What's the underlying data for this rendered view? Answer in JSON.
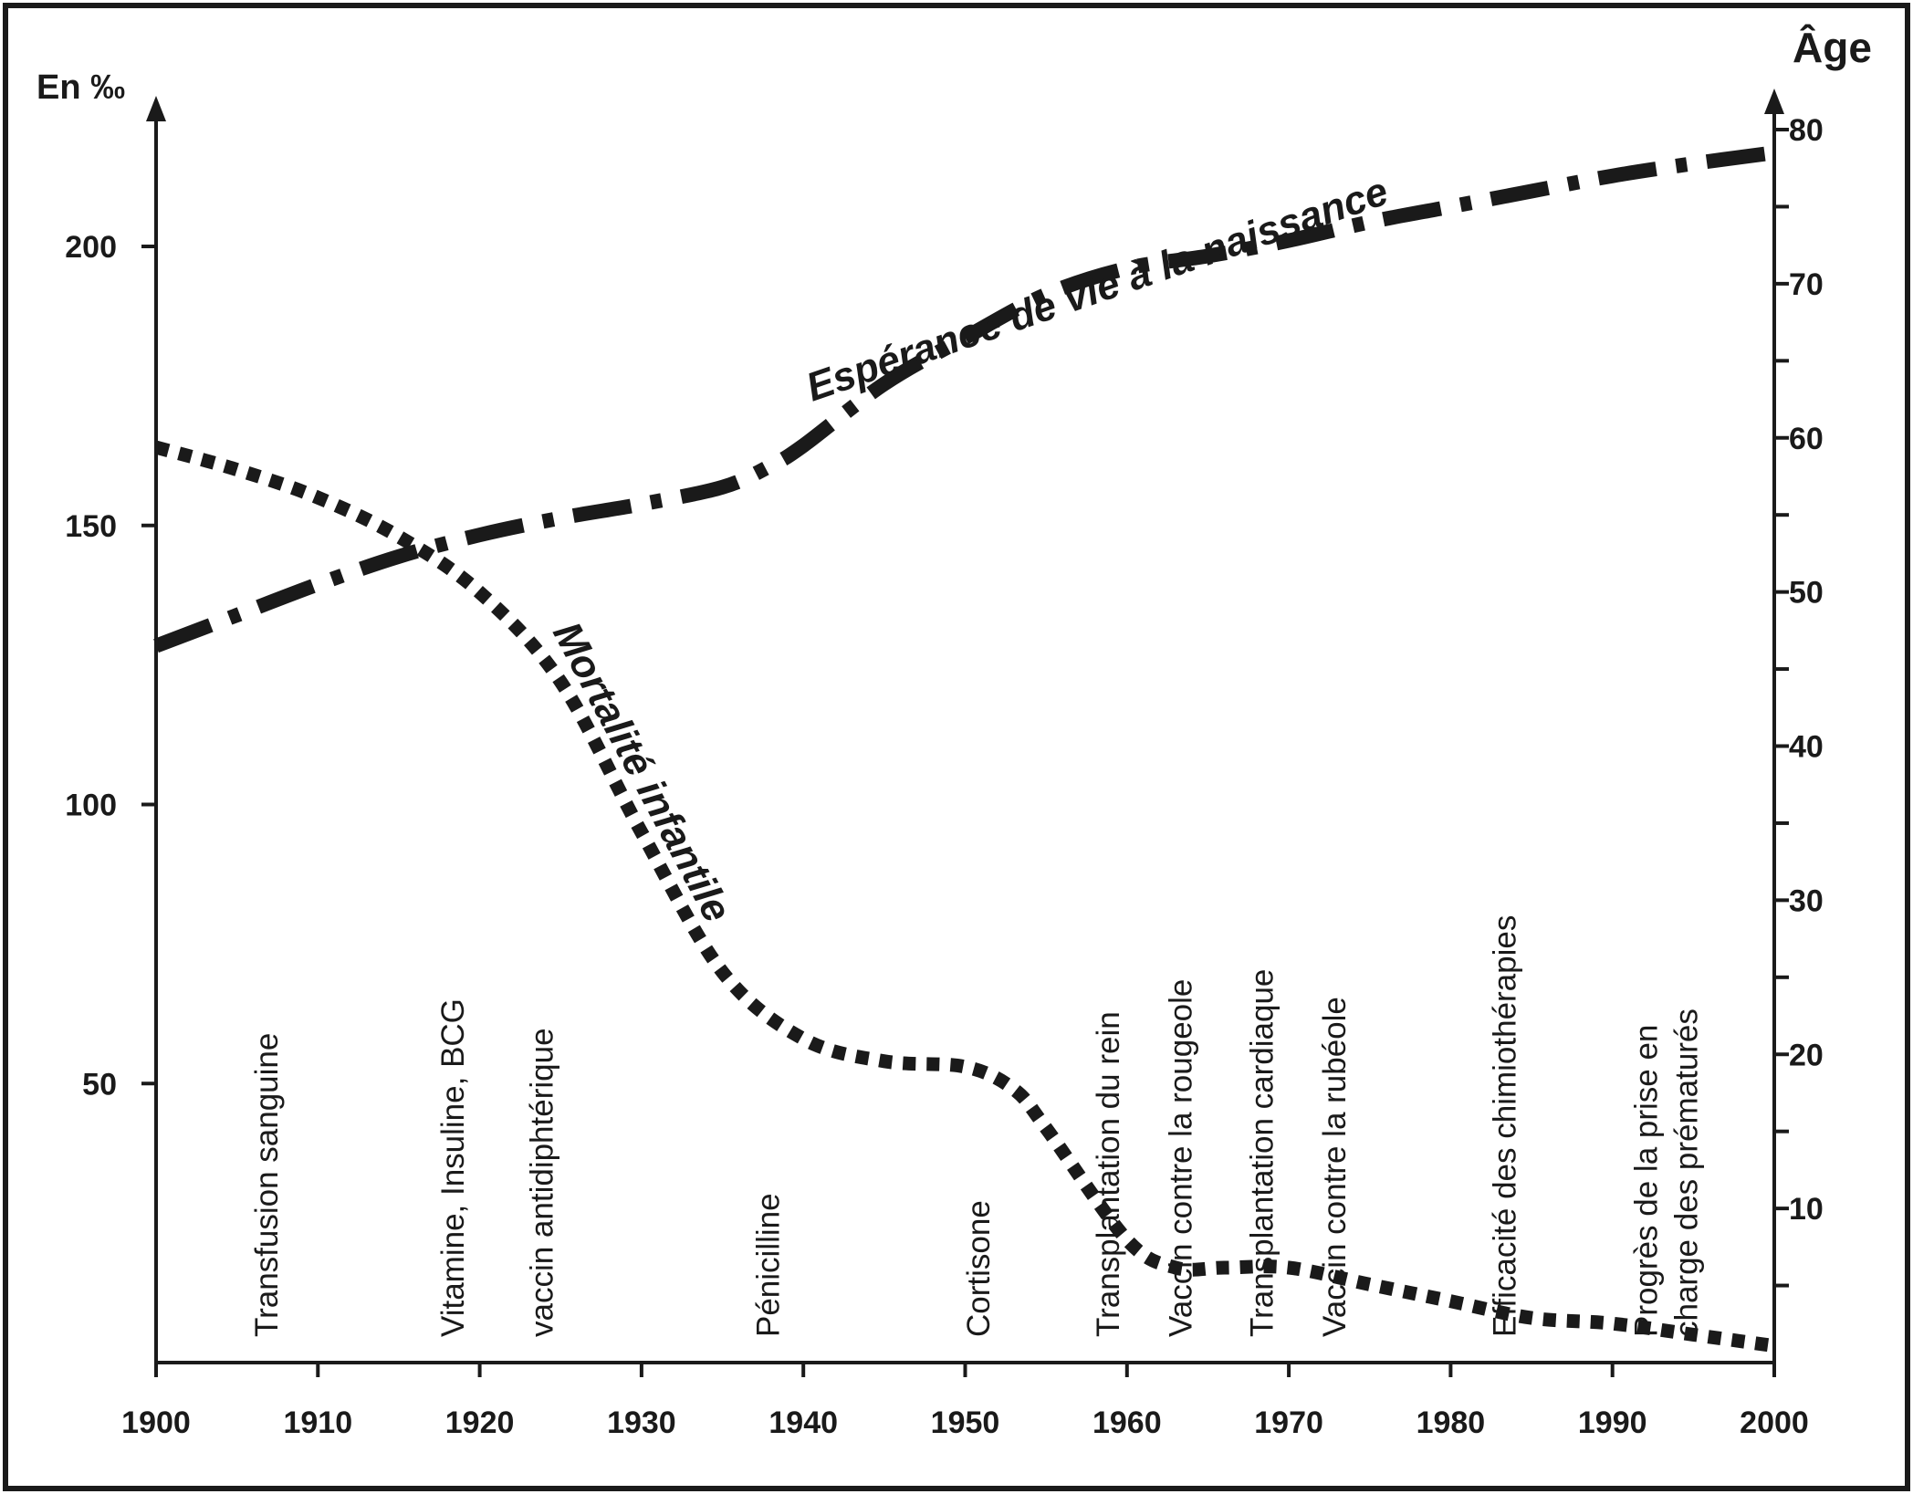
{
  "chart_data": {
    "type": "line",
    "title": "",
    "xlabel": "",
    "y_left_label": "En ‰",
    "y_right_label": "Âge",
    "x_range": [
      1900,
      2000
    ],
    "y_left_range": [
      0,
      220
    ],
    "y_right_range": [
      0,
      80
    ],
    "x_ticks": [
      1900,
      1910,
      1920,
      1930,
      1940,
      1950,
      1960,
      1970,
      1980,
      1990,
      2000
    ],
    "x_tick_labels": [
      "1900",
      "1910",
      "1920",
      "1930",
      "1940",
      "1950",
      "1960",
      "1970",
      "1980",
      "1990",
      "2000"
    ],
    "y_left_ticks": [
      50,
      100,
      150,
      200
    ],
    "y_left_tick_labels": [
      "50",
      "100",
      "150",
      "200"
    ],
    "y_right_ticks": [
      10,
      20,
      30,
      40,
      50,
      60,
      70,
      80
    ],
    "y_right_tick_labels": [
      "10",
      "20",
      "30",
      "40",
      "50",
      "60",
      "70",
      "80"
    ],
    "y_right_minor_step": 5,
    "grid": false,
    "series": [
      {
        "name": "Mortalité infantile",
        "axis": "left",
        "style": "dotted",
        "x": [
          1900,
          1905,
          1910,
          1915,
          1920,
          1925,
          1930,
          1935,
          1940,
          1945,
          1950,
          1953,
          1955,
          1960,
          1963,
          1966,
          1970,
          1975,
          1980,
          1985,
          1990,
          1995,
          2000
        ],
        "y": [
          164,
          160,
          155,
          148,
          138,
          122,
          95,
          70,
          58,
          54,
          53,
          49,
          42,
          22,
          17,
          17,
          17,
          14,
          11,
          8,
          7,
          5,
          3
        ]
      },
      {
        "name": "Espérance de vie à la naissance",
        "axis": "right",
        "style": "dash-dot",
        "x": [
          1900,
          1905,
          1910,
          1915,
          1920,
          1925,
          1930,
          1935,
          1938,
          1940,
          1945,
          1950,
          1955,
          1960,
          1965,
          1970,
          1975,
          1980,
          1985,
          1990,
          1995,
          2000
        ],
        "y": [
          46.5,
          48.5,
          50.5,
          52.3,
          53.7,
          54.8,
          55.7,
          56.8,
          58.2,
          59.5,
          63.5,
          66.5,
          69.3,
          71.0,
          71.8,
          72.8,
          74.0,
          75.0,
          76.0,
          77.0,
          77.8,
          78.5
        ]
      }
    ],
    "annotations": [
      {
        "label": "Transfusion sanguine",
        "x": 1907.5
      },
      {
        "label": "Vitamine, Insuline, BCG",
        "x": 1919
      },
      {
        "label": "vaccin antidiphtérique",
        "x": 1924.5
      },
      {
        "label": "Pénicilline",
        "x": 1938.5
      },
      {
        "label": "Cortisone",
        "x": 1951.5
      },
      {
        "label": "Transplantation du rein",
        "x": 1959.5
      },
      {
        "label": "Vaccin contre la rougeole",
        "x": 1964
      },
      {
        "label": "Transplantation cardiaque",
        "x": 1969
      },
      {
        "label": "Vaccin contre la rubéole",
        "x": 1973.5
      },
      {
        "label": "Efficacité des chimiothérapies",
        "x": 1984
      },
      {
        "label": [
          "Progrès de la prise en",
          "charge des prématurés"
        ],
        "x": 1994
      }
    ]
  }
}
